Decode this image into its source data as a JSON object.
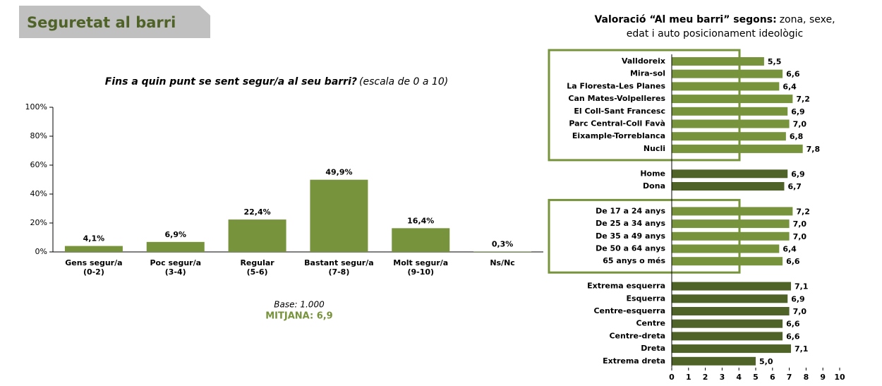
{
  "header": {
    "title": "Seguretat al barri"
  },
  "chart_data": [
    {
      "type": "bar",
      "title": "Fins a quin punt se sent segur/a al seu barri?",
      "subtitle": "(escala de 0 a 10)",
      "categories": [
        [
          "Gens segur/a",
          "(0-2)"
        ],
        [
          "Poc segur/a",
          "(3-4)"
        ],
        [
          "Regular",
          "(5-6)"
        ],
        [
          "Bastant segur/a",
          "(7-8)"
        ],
        [
          "Molt segur/a",
          "(9-10)"
        ],
        [
          "Ns/Nc"
        ]
      ],
      "values": [
        4.1,
        6.9,
        22.4,
        49.9,
        16.4,
        0.3
      ],
      "value_labels": [
        "4,1%",
        "6,9%",
        "22,4%",
        "49,9%",
        "16,4%",
        "0,3%"
      ],
      "color": "#77933c",
      "ylim": [
        0,
        100
      ],
      "yticks": [
        {
          "value": 0,
          "label": "0%"
        },
        {
          "value": 20,
          "label": "20%"
        },
        {
          "value": 40,
          "label": "40%"
        },
        {
          "value": 60,
          "label": "60%"
        },
        {
          "value": 80,
          "label": "80%"
        },
        {
          "value": 100,
          "label": "100%"
        }
      ],
      "base": "Base: 1.000",
      "mean": "MITJANA: 6,9"
    },
    {
      "type": "bar",
      "orientation": "horizontal",
      "title": "Valoració “Al meu barri” segons:",
      "subtitle": [
        "zona, sexe,",
        "edat i auto posicionament ideològic"
      ],
      "xlim": [
        0,
        10
      ],
      "xticks": [
        0,
        1,
        2,
        3,
        4,
        5,
        6,
        7,
        8,
        9,
        10
      ],
      "groups": [
        {
          "color": "#77933c",
          "framed": true,
          "categories": [
            "Valldoreix",
            "Mira-sol",
            "La Floresta-Les Planes",
            "Can Mates-Volpelleres",
            "El Coll-Sant Francesc",
            "Parc Central-Coll Favà",
            "Eixample-Torreblanca",
            "Nucli"
          ],
          "values": [
            5.5,
            6.6,
            6.4,
            7.2,
            6.9,
            7.0,
            6.8,
            7.8
          ],
          "value_labels": [
            "5,5",
            "6,6",
            "6,4",
            "7,2",
            "6,9",
            "7,0",
            "6,8",
            "7,8"
          ]
        },
        {
          "color": "#4f6228",
          "framed": false,
          "categories": [
            "Home",
            "Dona"
          ],
          "values": [
            6.9,
            6.7
          ],
          "value_labels": [
            "6,9",
            "6,7"
          ]
        },
        {
          "color": "#77933c",
          "framed": true,
          "categories": [
            "De 17 a 24 anys",
            "De 25 a 34 anys",
            "De 35 a 49 anys",
            "De 50 a 64 anys",
            "65 anys o més"
          ],
          "values": [
            7.2,
            7.0,
            7.0,
            6.4,
            6.6
          ],
          "value_labels": [
            "7,2",
            "7,0",
            "7,0",
            "6,4",
            "6,6"
          ]
        },
        {
          "color": "#4f6228",
          "framed": false,
          "categories": [
            "Extrema esquerra",
            "Esquerra",
            "Centre-esquerra",
            "Centre",
            "Centre-dreta",
            "Dreta",
            "Extrema dreta"
          ],
          "values": [
            7.1,
            6.9,
            7.0,
            6.6,
            6.6,
            7.1,
            5.0
          ],
          "value_labels": [
            "7,1",
            "6,9",
            "7,0",
            "6,6",
            "6,6",
            "7,1",
            "5,0"
          ]
        }
      ]
    }
  ]
}
